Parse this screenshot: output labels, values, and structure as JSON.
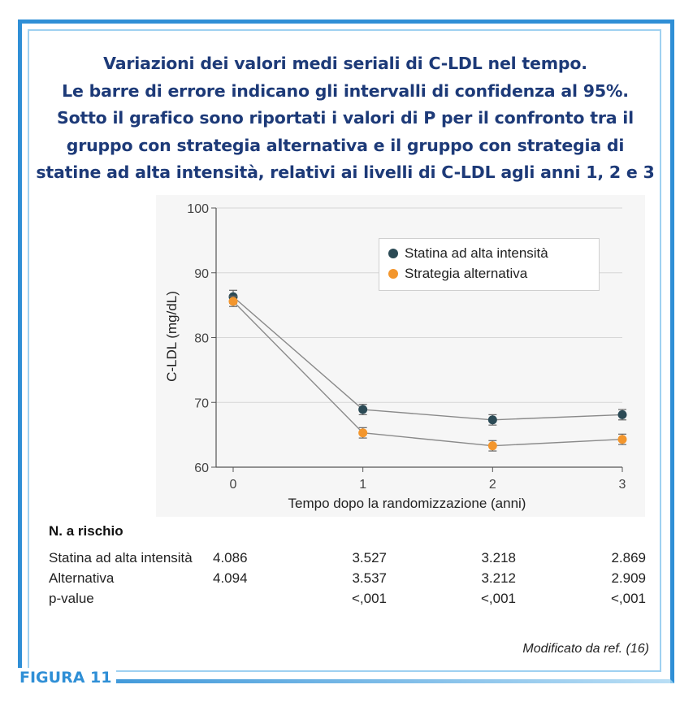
{
  "title_lines": [
    "Variazioni dei valori medi seriali di C-LDL nel tempo.",
    "Le barre di errore indicano gli intervalli di confidenza al 95%.",
    "Sotto il grafico sono riportati i valori di P per il confronto tra il",
    "gruppo con strategia alternativa e il gruppo con strategia di",
    "statine ad alta intensità, relativi ai livelli di C-LDL agli anni 1, 2 e 3"
  ],
  "colors": {
    "high_intensity": "#2b4a55",
    "alternative": "#f3962d",
    "frame": "#2f8fd6",
    "title": "#1d3a78"
  },
  "chart_data": {
    "type": "line",
    "xlabel": "Tempo dopo la randomizzazione (anni)",
    "ylabel": "C-LDL (mg/dL)",
    "x": [
      0,
      1,
      2,
      3
    ],
    "xticks": [
      "0",
      "1",
      "2",
      "3"
    ],
    "ylim": [
      60,
      100
    ],
    "yticks": [
      "60",
      "70",
      "80",
      "90",
      "100"
    ],
    "grid": "horizontal",
    "legend_position": "top-right",
    "series": [
      {
        "name": "Statina ad alta intensità",
        "values": [
          86.3,
          68.9,
          67.3,
          68.1
        ],
        "ci": [
          1.0,
          0.8,
          0.8,
          0.8
        ]
      },
      {
        "name": "Strategia alternativa",
        "values": [
          85.6,
          65.3,
          63.3,
          64.3
        ],
        "ci": [
          0.8,
          0.8,
          0.8,
          0.8
        ]
      }
    ]
  },
  "risk_table": {
    "title": "N. a rischio",
    "rows": [
      {
        "label": "Statina ad alta intensità",
        "values": [
          "4.086",
          "3.527",
          "3.218",
          "2.869"
        ]
      },
      {
        "label": "Alternativa",
        "values": [
          "4.094",
          "3.537",
          "3.212",
          "2.909"
        ]
      },
      {
        "label": "p-value",
        "values": [
          "",
          "<,001",
          "<,001",
          "<,001"
        ]
      }
    ]
  },
  "source_note": "Modificato da ref. (16)",
  "figure_label": "FIGURA 11"
}
